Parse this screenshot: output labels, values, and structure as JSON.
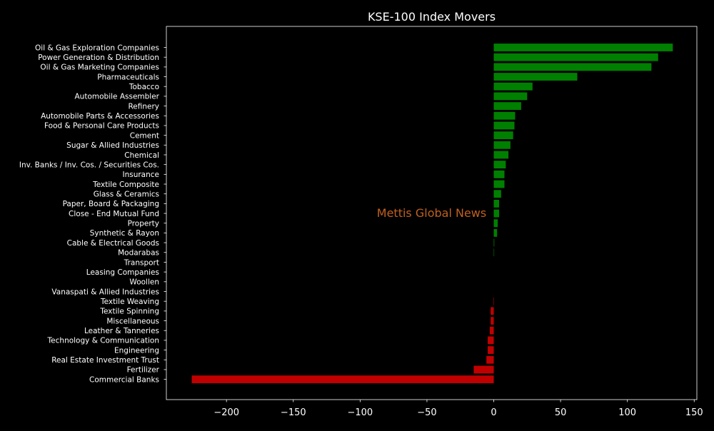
{
  "chart_data": {
    "type": "bar",
    "orientation": "horizontal",
    "title": "KSE-100 Index Movers",
    "xlabel": "",
    "ylabel": "",
    "xlim": [
      -245,
      152
    ],
    "xticks": [
      -200,
      -150,
      -100,
      -50,
      0,
      50,
      100,
      150
    ],
    "xtick_labels": [
      "−200",
      "−150",
      "−100",
      "−50",
      "0",
      "50",
      "100",
      "150"
    ],
    "grid": false,
    "watermark": "Mettis Global News",
    "colors": {
      "positive": "#008000",
      "negative": "#c00000",
      "background": "#000000",
      "foreground": "#ffffff",
      "watermark": "#c06020"
    },
    "categories": [
      "Oil & Gas Exploration Companies",
      "Power Generation & Distribution",
      "Oil & Gas Marketing Companies",
      "Pharmaceuticals",
      "Tobacco",
      "Automobile Assembler",
      "Refinery",
      "Automobile Parts & Accessories",
      "Food & Personal Care Products",
      "Cement",
      "Sugar & Allied Industries",
      "Chemical",
      "Inv. Banks / Inv. Cos. / Securities Cos.",
      "Insurance",
      "Textile Composite",
      "Glass & Ceramics",
      "Paper, Board & Packaging",
      "Close - End Mutual Fund",
      "Property",
      "Synthetic & Rayon",
      "Cable & Electrical Goods",
      "Modarabas",
      "Transport",
      "Leasing Companies",
      "Woollen",
      "Vanaspati & Allied Industries",
      "Textile Weaving",
      "Textile Spinning",
      "Miscellaneous",
      "Leather & Tanneries",
      "Technology & Communication",
      "Engineering",
      "Real Estate Investment Trust",
      "Fertilizer",
      "Commercial Banks"
    ],
    "values": [
      134,
      123,
      118,
      62.5,
      29,
      25,
      20.5,
      16,
      15.5,
      14.5,
      12.5,
      11,
      9,
      8,
      8,
      5.5,
      4,
      4,
      3,
      2.5,
      0.4,
      0.3,
      0,
      0,
      0,
      0,
      -0.3,
      -2.3,
      -2.3,
      -3,
      -4.5,
      -4.5,
      -5.5,
      -15,
      -226
    ]
  }
}
